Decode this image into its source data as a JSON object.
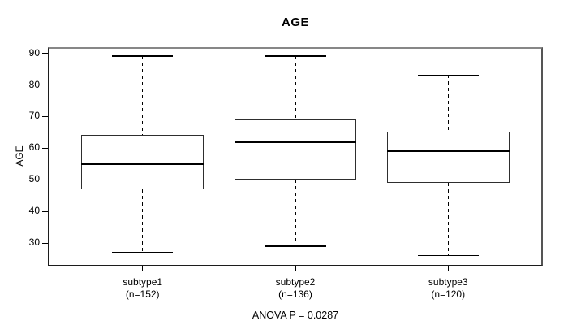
{
  "chart_data": {
    "type": "boxplot",
    "title": "AGE",
    "ylabel": "AGE",
    "xlabel": "",
    "ylim": [
      22.8,
      91.8
    ],
    "y_ticks": [
      30,
      40,
      50,
      60,
      70,
      80,
      90
    ],
    "grid": false,
    "frame": true,
    "legend": "none",
    "categories": [
      "subtype1",
      "subtype2",
      "subtype3"
    ],
    "category_counts": [
      "(n=152)",
      "(n=136)",
      "(n=120)"
    ],
    "series": [
      {
        "label": "subtype1",
        "count_label": "(n=152)",
        "n": 152,
        "whisker_low": 27,
        "q1": 47,
        "median": 55,
        "q3": 64,
        "whisker_high": 89
      },
      {
        "label": "subtype2",
        "count_label": "(n=136)",
        "n": 136,
        "whisker_low": 29,
        "q1": 50,
        "median": 62,
        "q3": 69,
        "whisker_high": 89
      },
      {
        "label": "subtype3",
        "count_label": "(n=120)",
        "n": 120,
        "whisker_low": 26,
        "q1": 49,
        "median": 59,
        "q3": 65,
        "whisker_high": 83
      }
    ],
    "annotation": "ANOVA P = 0.0287"
  },
  "colors": {
    "line": "#000000",
    "frame_top": "#878787",
    "background": "#ffffff",
    "text": "#000000"
  }
}
